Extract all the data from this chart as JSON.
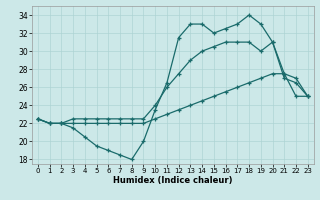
{
  "xlabel": "Humidex (Indice chaleur)",
  "xlim": [
    -0.5,
    23.5
  ],
  "ylim": [
    17.5,
    35
  ],
  "xticks": [
    0,
    1,
    2,
    3,
    4,
    5,
    6,
    7,
    8,
    9,
    10,
    11,
    12,
    13,
    14,
    15,
    16,
    17,
    18,
    19,
    20,
    21,
    22,
    23
  ],
  "yticks": [
    18,
    20,
    22,
    24,
    26,
    28,
    30,
    32,
    34
  ],
  "bg_color": "#cce8e8",
  "line_color": "#1a6b6b",
  "grid_color": "#aed4d4",
  "series": [
    {
      "x": [
        0,
        1,
        2,
        3,
        4,
        5,
        6,
        7,
        8,
        9,
        10,
        11,
        12,
        13,
        14,
        15,
        16,
        17,
        18,
        19,
        20,
        21,
        22,
        23
      ],
      "y": [
        22.5,
        22,
        22,
        21.5,
        20.5,
        19.5,
        19,
        18.5,
        18,
        20,
        23.5,
        26.5,
        31.5,
        33,
        33,
        32,
        32.5,
        33,
        34,
        33,
        31,
        27,
        26.5,
        25
      ]
    },
    {
      "x": [
        0,
        1,
        2,
        3,
        4,
        5,
        6,
        7,
        8,
        9,
        10,
        11,
        12,
        13,
        14,
        15,
        16,
        17,
        18,
        19,
        20,
        21,
        22,
        23
      ],
      "y": [
        22.5,
        22,
        22,
        22.5,
        22.5,
        22.5,
        22.5,
        22.5,
        22.5,
        22.5,
        24,
        26,
        27.5,
        29,
        30,
        30.5,
        31,
        31,
        31,
        30,
        31,
        27.5,
        27,
        25
      ]
    },
    {
      "x": [
        0,
        1,
        2,
        3,
        4,
        5,
        6,
        7,
        8,
        9,
        10,
        11,
        12,
        13,
        14,
        15,
        16,
        17,
        18,
        19,
        20,
        21,
        22,
        23
      ],
      "y": [
        22.5,
        22,
        22,
        22,
        22,
        22,
        22,
        22,
        22,
        22,
        22.5,
        23,
        23.5,
        24,
        24.5,
        25,
        25.5,
        26,
        26.5,
        27,
        27.5,
        27.5,
        25,
        25
      ]
    }
  ]
}
